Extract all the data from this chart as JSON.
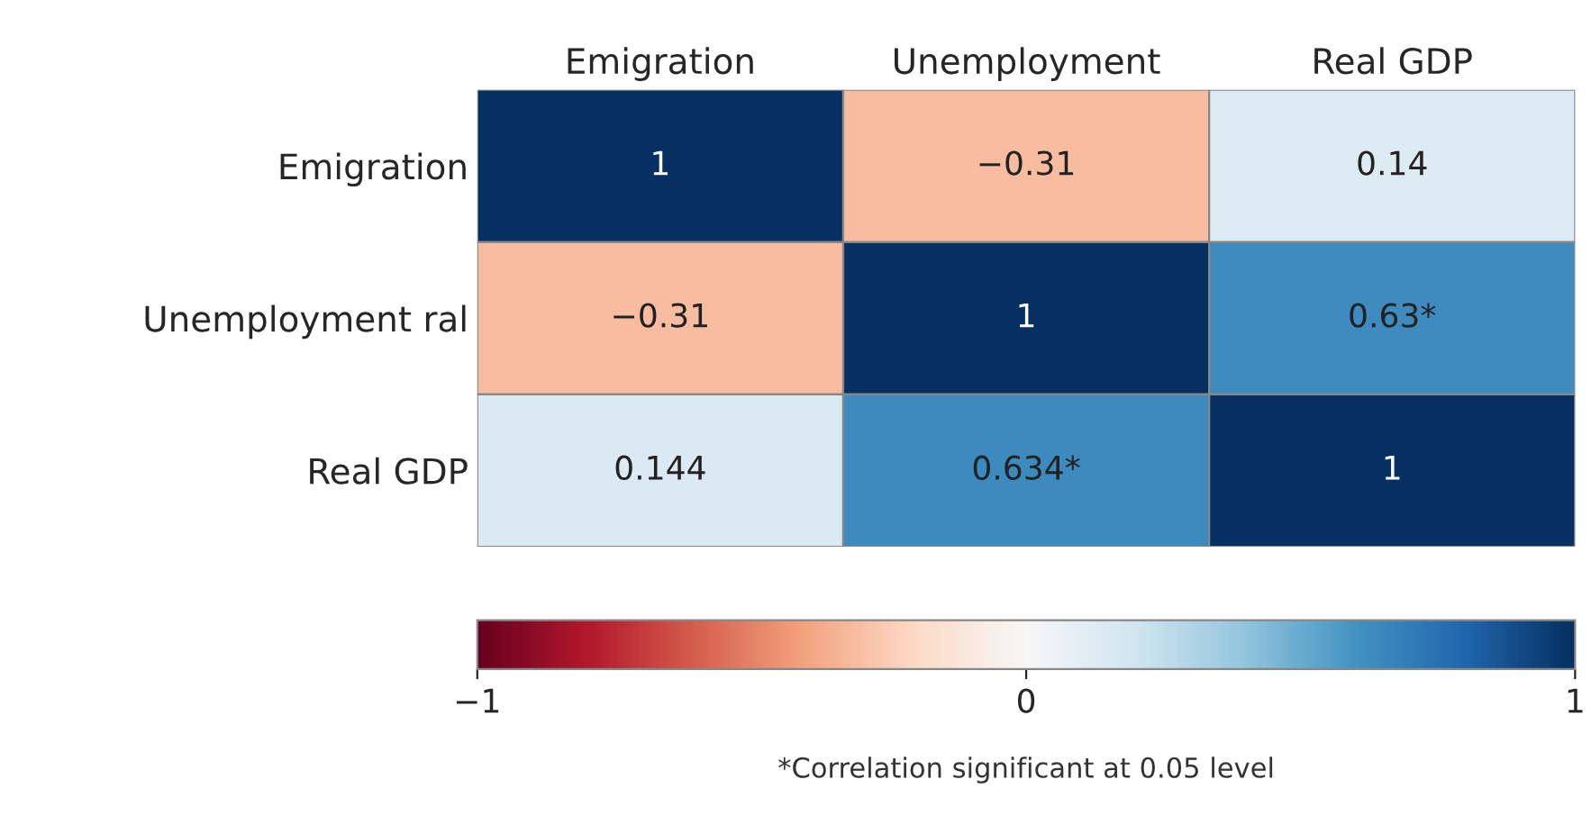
{
  "chart_data": {
    "type": "heatmap",
    "categories": [
      "Emigration",
      "Unemployment",
      "Real GDP"
    ],
    "y_categories": [
      "Emigration",
      "Unemployment ral",
      "Real GDP"
    ],
    "cells": [
      [
        1,
        -0.31,
        0.14
      ],
      [
        -0.31,
        1,
        0.63
      ],
      [
        0.144,
        0.634,
        1
      ]
    ],
    "cell_labels": [
      [
        "1",
        "−0.31",
        "0.14"
      ],
      [
        "−0.31",
        "1",
        "0.63*"
      ],
      [
        "0.144",
        "0.634*",
        "1"
      ]
    ],
    "clim": [
      -1,
      1
    ],
    "cticks": [
      {
        "value": -1,
        "label": "−1"
      },
      0,
      1
    ],
    "annotations": [
      "*Correlation significant at 0.05 level"
    ]
  }
}
